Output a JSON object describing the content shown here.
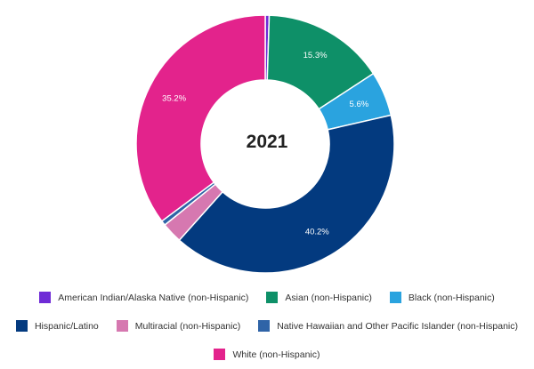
{
  "chart_data": {
    "type": "pie",
    "center_text": "2021",
    "legend_position": "bottom",
    "slices": [
      {
        "label": "American Indian/Alaska Native (non-Hispanic)",
        "value": 0.5,
        "color": "#6f2bd6",
        "value_label": ""
      },
      {
        "label": "Asian (non-Hispanic)",
        "value": 15.3,
        "color": "#0e9068",
        "value_label": "15.3%"
      },
      {
        "label": "Black (non-Hispanic)",
        "value": 5.6,
        "color": "#2aa3df",
        "value_label": "5.6%"
      },
      {
        "label": "Hispanic/Latino",
        "value": 40.2,
        "color": "#033a7f",
        "value_label": "40.2%"
      },
      {
        "label": "Multiracial (non-Hispanic)",
        "value": 2.6,
        "color": "#d678b0",
        "value_label": ""
      },
      {
        "label": "Native Hawaiian and Other Pacific Islander (non-Hispanic)",
        "value": 0.6,
        "color": "#2f64a7",
        "value_label": ""
      },
      {
        "label": "White (non-Hispanic)",
        "value": 35.2,
        "color": "#e3238c",
        "value_label": "35.2%"
      }
    ]
  }
}
